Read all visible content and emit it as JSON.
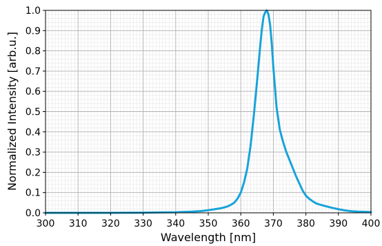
{
  "chart_data": {
    "type": "line",
    "title": "",
    "xlabel": "Wavelength [nm]",
    "ylabel": "Normalized Intensity [arb.u.]",
    "xlim": [
      300,
      400
    ],
    "ylim": [
      0,
      1.0
    ],
    "x_ticks": [
      300,
      310,
      320,
      330,
      340,
      350,
      360,
      370,
      380,
      390,
      400
    ],
    "y_ticks": [
      "0.0",
      "0.1",
      "0.2",
      "0.3",
      "0.4",
      "0.5",
      "0.6",
      "0.7",
      "0.8",
      "0.9",
      "1.0"
    ],
    "grid": true,
    "minor_grid": true,
    "line_color": "#17a3d9",
    "series": [
      {
        "x": [
          300,
          320,
          330,
          335,
          340,
          345,
          348,
          350,
          352,
          354,
          355,
          356,
          357,
          358,
          359,
          360,
          361,
          362,
          363,
          364,
          365,
          366,
          366.5,
          367,
          367.5,
          368,
          368.5,
          369,
          369.5,
          370,
          371,
          372,
          373,
          374,
          375,
          376,
          377,
          378,
          379,
          380,
          381,
          382,
          383,
          384,
          386,
          388,
          390,
          392,
          394,
          396,
          398,
          400
        ],
        "y": [
          0.0,
          0.0,
          0.001,
          0.002,
          0.003,
          0.006,
          0.009,
          0.013,
          0.018,
          0.023,
          0.027,
          0.032,
          0.04,
          0.05,
          0.07,
          0.1,
          0.15,
          0.22,
          0.33,
          0.48,
          0.65,
          0.83,
          0.91,
          0.97,
          0.99,
          1.0,
          0.98,
          0.93,
          0.84,
          0.72,
          0.52,
          0.41,
          0.35,
          0.3,
          0.26,
          0.22,
          0.18,
          0.145,
          0.11,
          0.085,
          0.07,
          0.058,
          0.048,
          0.042,
          0.033,
          0.025,
          0.018,
          0.012,
          0.008,
          0.006,
          0.005,
          0.004
        ]
      }
    ]
  }
}
